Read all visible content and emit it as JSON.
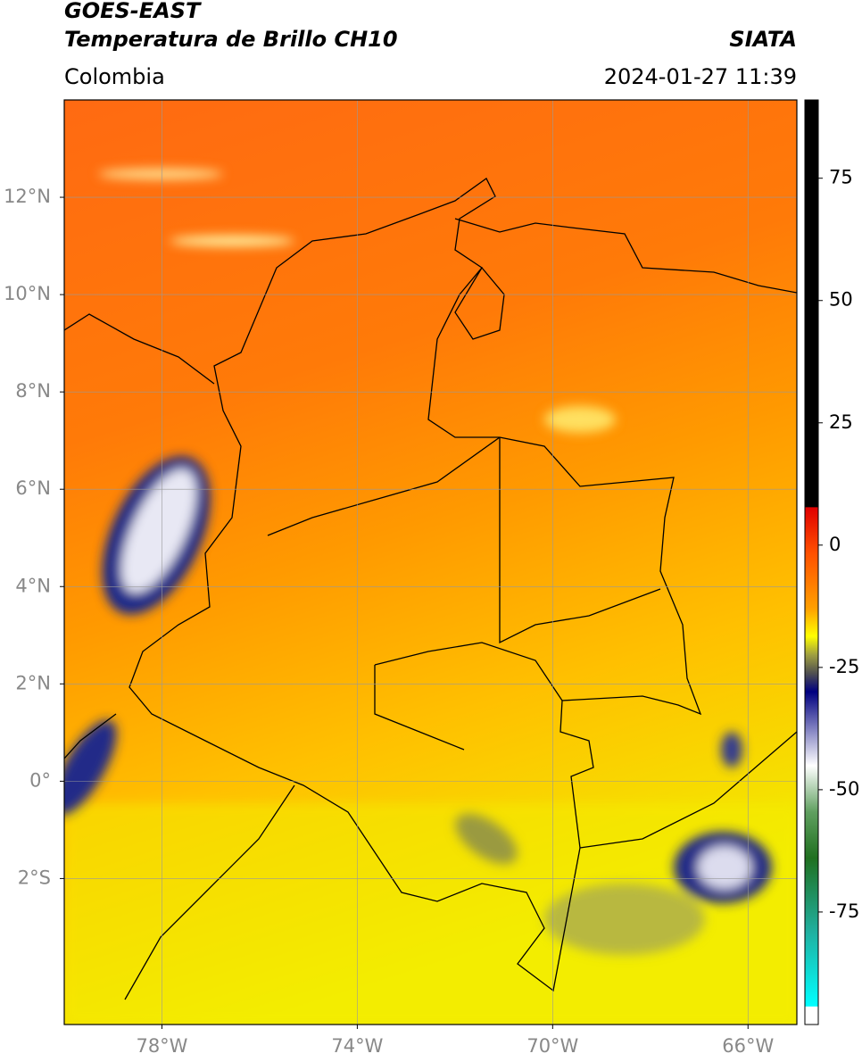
{
  "header": {
    "satellite": "GOES-EAST",
    "product": "Temperatura de Brillo CH10",
    "source": "SIATA",
    "region": "Colombia",
    "timestamp": "2024-01-27 11:39"
  },
  "map": {
    "lon_range": [
      -80,
      -65
    ],
    "lat_range": [
      -5,
      14
    ],
    "lon_ticks": [
      {
        "value": -78,
        "label": "78°W"
      },
      {
        "value": -74,
        "label": "74°W"
      },
      {
        "value": -70,
        "label": "70°W"
      },
      {
        "value": -66,
        "label": "66°W"
      }
    ],
    "lat_ticks": [
      {
        "value": 12,
        "label": "12°N"
      },
      {
        "value": 10,
        "label": "10°N"
      },
      {
        "value": 8,
        "label": "8°N"
      },
      {
        "value": 6,
        "label": "6°N"
      },
      {
        "value": 4,
        "label": "4°N"
      },
      {
        "value": 2,
        "label": "2°N"
      },
      {
        "value": 0,
        "label": "0°"
      },
      {
        "value": -2,
        "label": "2°S"
      }
    ]
  },
  "colorbar": {
    "range": [
      -98,
      91
    ],
    "ticks": [
      75,
      50,
      25,
      0,
      -25,
      -50,
      -75
    ]
  }
}
